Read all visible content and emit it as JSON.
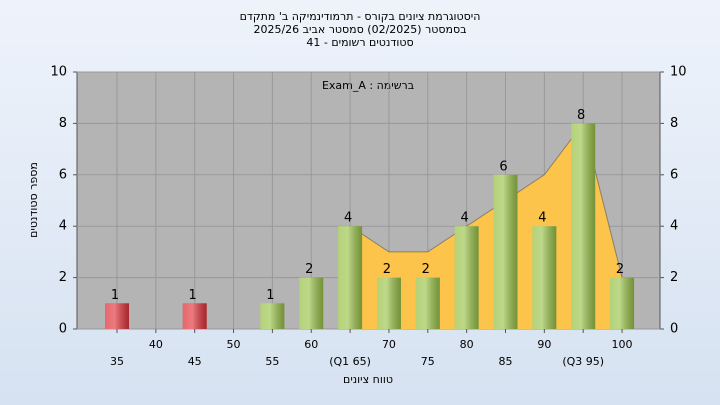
{
  "chart_data": {
    "type": "bar",
    "title": [
      "היסטוגרמת ציונים בקורס - תרמודינמיקה ב' מתקדם",
      "בסמסטר  (02/2025)  סמסטר אביב 2025/26",
      "סטודנטים רשומים - 41"
    ],
    "annotation": "Exam_A : ברשימה",
    "xlabel": "טווח ציונים",
    "ylabel": "מספר סטודנטים",
    "categories": [
      "35",
      "40",
      "45",
      "50",
      "55",
      "60",
      "(Q1 65)",
      "70",
      "75",
      "80",
      "85",
      "90",
      "(Q3 95)",
      "100"
    ],
    "values": [
      1,
      0,
      1,
      0,
      1,
      2,
      4,
      2,
      2,
      4,
      6,
      4,
      8,
      2
    ],
    "colors": [
      "#e0343c",
      "#e0343c",
      "#e0343c",
      "#e0343c",
      "#9bc34b",
      "#9bc34b",
      "#9bc34b",
      "#9bc34b",
      "#9bc34b",
      "#9bc34b",
      "#9bc34b",
      "#9bc34b",
      "#9bc34b",
      "#9bc34b"
    ],
    "area": {
      "color": "#fcc44a",
      "values": [
        null,
        null,
        null,
        null,
        null,
        null,
        4,
        3,
        3,
        4,
        5,
        6,
        8,
        2
      ]
    },
    "ylim": [
      0,
      10
    ],
    "yticks": [
      0,
      2,
      4,
      6,
      8,
      10
    ],
    "grid": true
  }
}
